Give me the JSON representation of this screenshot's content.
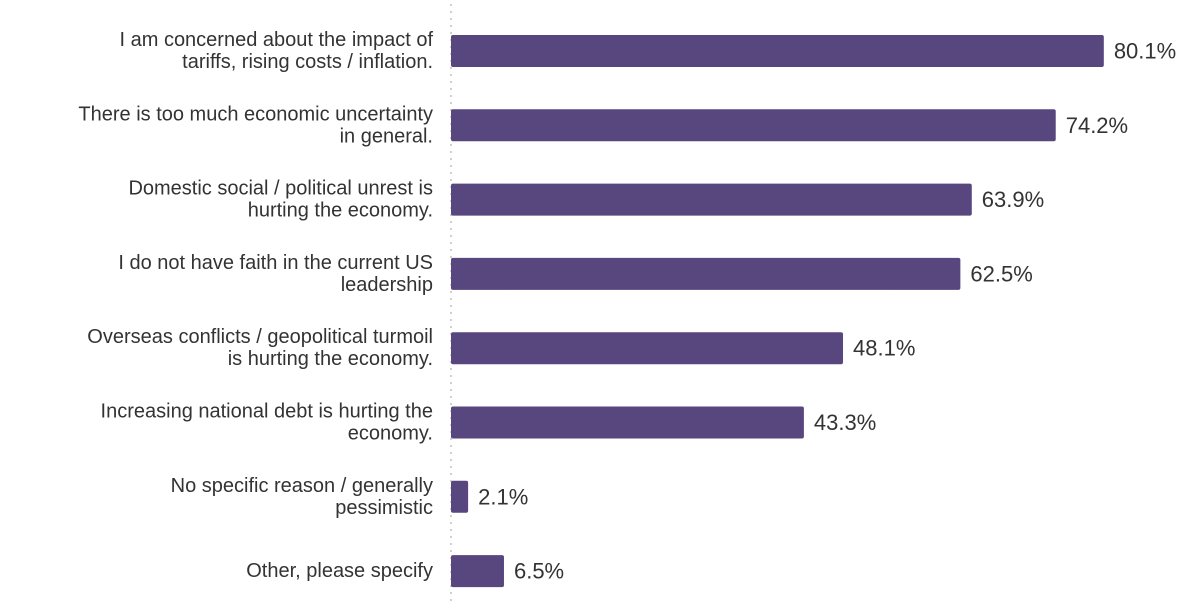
{
  "chart_data": {
    "type": "bar",
    "orientation": "horizontal",
    "categories": [
      [
        "I am concerned about the impact of",
        "tariffs, rising costs / inflation."
      ],
      [
        "There is too much economic uncertainty",
        "in general."
      ],
      [
        "Domestic social / political unrest is",
        "hurting the economy."
      ],
      [
        "I do not have faith in the current US",
        "leadership"
      ],
      [
        "Overseas conflicts / geopolitical turmoil",
        "is hurting the economy."
      ],
      [
        "Increasing national debt is hurting the",
        "economy."
      ],
      [
        "No specific reason / generally",
        "pessimistic"
      ],
      [
        "Other, please specify"
      ]
    ],
    "values": [
      80.1,
      74.2,
      63.9,
      62.5,
      48.1,
      43.3,
      2.1,
      6.5
    ],
    "value_labels": [
      "80.1%",
      "74.2%",
      "63.9%",
      "62.5%",
      "48.1%",
      "43.3%",
      "2.1%",
      "6.5%"
    ],
    "xlim": [
      0,
      100
    ],
    "bar_color": "#58467e",
    "axis_line": "dotted",
    "grid": false,
    "legend": "none"
  }
}
